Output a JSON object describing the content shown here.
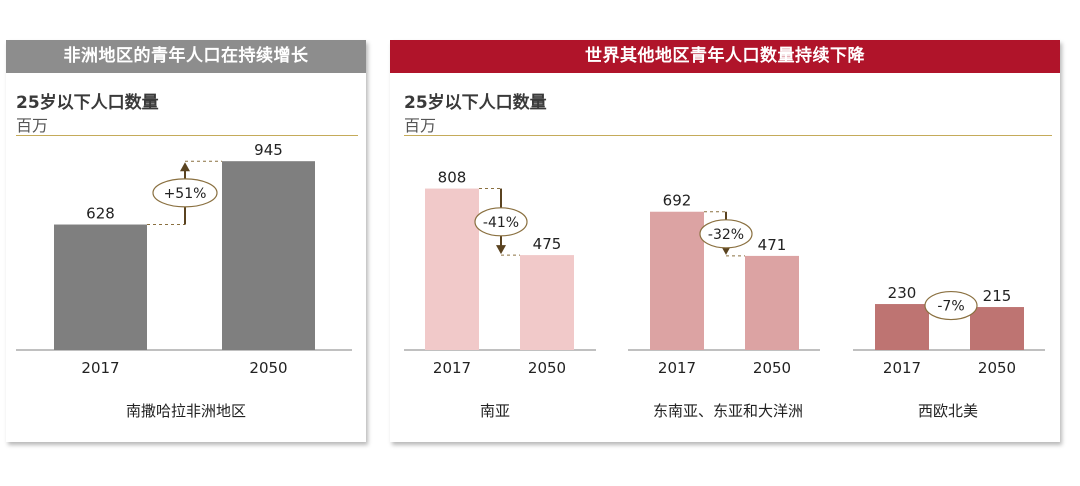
{
  "left_panel": {
    "banner": "非洲地区的青年人口在持续增长",
    "title": "25岁以下人口数量",
    "unit": "百万"
  },
  "right_panel": {
    "banner": "世界其他地区青年人口数量持续下降",
    "title": "25岁以下人口数量",
    "unit": "百万"
  },
  "chart_data": [
    {
      "type": "bar",
      "region": "南撒哈拉非洲地区",
      "categories": [
        "2017",
        "2050"
      ],
      "values": [
        628,
        945
      ],
      "change_label": "+51%",
      "colors": [
        "#7f7f7f",
        "#7f7f7f"
      ],
      "ylabel": "百万"
    },
    {
      "type": "bar",
      "region": "南亚",
      "categories": [
        "2017",
        "2050"
      ],
      "values": [
        808,
        475
      ],
      "change_label": "-41%",
      "colors": [
        "#f1c9c9",
        "#f1c9c9"
      ],
      "ylabel": "百万"
    },
    {
      "type": "bar",
      "region": "东南亚、东亚和大洋洲",
      "categories": [
        "2017",
        "2050"
      ],
      "values": [
        692,
        471
      ],
      "change_label": "-32%",
      "colors": [
        "#dca3a3",
        "#dca3a3"
      ],
      "ylabel": "百万"
    },
    {
      "type": "bar",
      "region": "西欧北美",
      "categories": [
        "2017",
        "2050"
      ],
      "values": [
        230,
        215
      ],
      "change_label": "-7%",
      "colors": [
        "#be7472",
        "#be7472"
      ],
      "ylabel": "百万"
    }
  ]
}
